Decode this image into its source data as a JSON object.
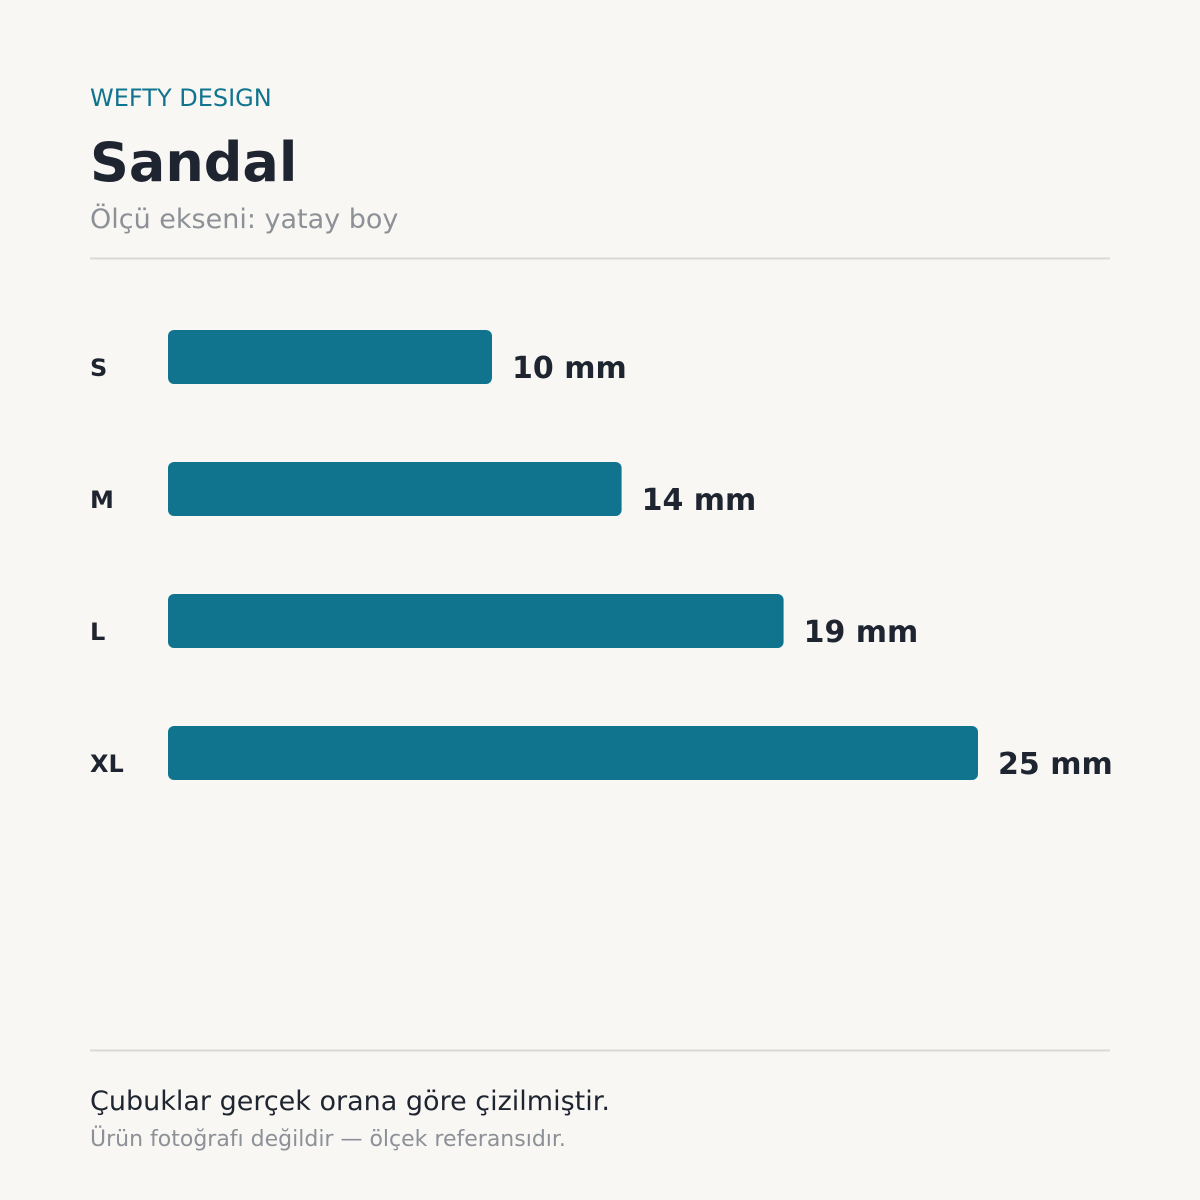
{
  "chart_data": {
    "type": "bar",
    "brand": "WEFTY DESIGN",
    "title": "Sandal",
    "subtitle": "Ölçü ekseni: yatay boy",
    "categories": [
      "S",
      "M",
      "L",
      "XL"
    ],
    "values": [
      10,
      14,
      19,
      25
    ],
    "value_labels": [
      "10 mm",
      "14 mm",
      "19 mm",
      "25 mm"
    ],
    "color": "#11748f",
    "footnote": "Çubuklar gerçek orana göre çizilmiştir.",
    "footnote_sub": "Ürün fotoğrafı değildir — ölçek referansıdır."
  }
}
